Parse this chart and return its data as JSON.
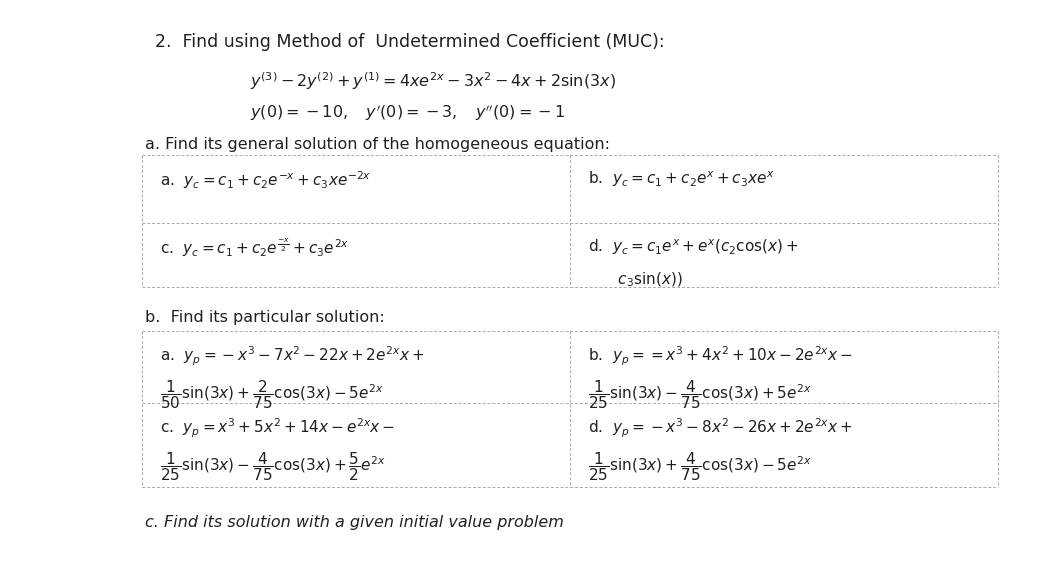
{
  "bg_color": "#ffffff",
  "title": "2.  Find using Method of  Undetermined Coefficient (MUC):",
  "ode_line1": "$y^{(3)} - 2y^{(2)} + y^{(1)} = 4xe^{2x} - 3x^2 - 4x + 2\\mathrm{sin}(3x)$",
  "ode_line2": "$y(0) = -10, \\quad y'(0) = -3, \\quad y''(0) = -1$",
  "part_a_heading": "a. Find its general solution of the homogeneous equation:",
  "cell_aa": "a.  $y_c = c_1 + c_2e^{-x} + c_3xe^{-2x}$",
  "cell_ab": "b.  $y_c = c_1 + c_2e^{x} + c_3xe^{x}$",
  "cell_ac": "c.  $y_c = c_1 + c_2e^{\\frac{-x}{2}} + c_3e^{2x}$",
  "cell_ad_line1": "d.  $y_c = c_1e^{x} + e^{x}(c_2 \\cos(x) +$",
  "cell_ad_line2": "$\\quad\\quad c_3 \\sin(x))$",
  "part_b_heading": "b.  Find its particular solution:",
  "cell_ba_line1": "a.  $y_p = -x^3 - 7x^2 - 22x + 2e^{2x}x +$",
  "cell_ba_line2": "$\\dfrac{1}{50}\\sin(3x) + \\dfrac{2}{75}\\cos(3x) - 5e^{2x}$",
  "cell_bb_line1": "b.  $y_p == x^3 + 4x^2 + 10x - 2e^{2x}x -$",
  "cell_bb_line2": "$\\dfrac{1}{25}\\sin(3x) - \\dfrac{4}{75}\\cos(3x) + 5e^{2x}$",
  "cell_bc_line1": "c.  $y_p = x^3 + 5x^2 + 14x - e^{2x}x -$",
  "cell_bc_line2": "$\\dfrac{1}{25}\\sin(3x) - \\dfrac{4}{75}\\cos(3x) + \\dfrac{5}{2}e^{2x}$",
  "cell_bd_line1": "d.  $y_p = -x^3 - 8x^2 - 26x + 2e^{2x}x +$",
  "cell_bd_line2": "$\\dfrac{1}{25}\\sin(3x) + \\dfrac{4}{75}\\cos(3x) - 5e^{2x}$",
  "part_c_heading": "c. Find its solution with a given initial value problem",
  "text_color": "#231f20",
  "line_color": "#aaaaaa",
  "font_size_title": 12.5,
  "font_size_body": 11.5,
  "font_size_cell": 11.0,
  "font_size_part_c": 11.5
}
